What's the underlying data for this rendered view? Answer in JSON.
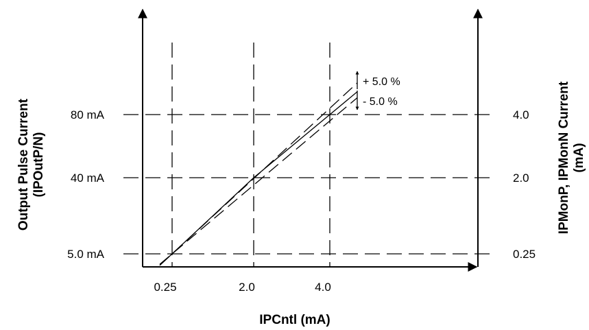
{
  "chart_data": {
    "type": "line",
    "xlabel": "IPCntl (mA)",
    "ylabel_left": [
      "Output Pulse Current",
      "(IPOutP/N)"
    ],
    "ylabel_right": [
      "IPMonP, IPMonN Current",
      "(mA)"
    ],
    "x_ticks": [
      {
        "value": 0.25,
        "label": "0.25"
      },
      {
        "value": 2.0,
        "label": "2.0"
      },
      {
        "value": 4.0,
        "label": "4.0"
      }
    ],
    "y_left_ticks": [
      {
        "value": 5.0,
        "label": "5.0 mA"
      },
      {
        "value": 40,
        "label": "40 mA"
      },
      {
        "value": 80,
        "label": "80 mA"
      }
    ],
    "y_right_ticks": [
      {
        "value": 0.25,
        "label": "0.25"
      },
      {
        "value": 2.0,
        "label": "2.0"
      },
      {
        "value": 4.0,
        "label": "4.0"
      }
    ],
    "series": [
      {
        "style": "solid",
        "x": [
          0.25,
          2.0,
          4.0
        ],
        "y": [
          0.25,
          2.0,
          4.0
        ]
      },
      {
        "style": "dashed",
        "x": [
          0.25,
          4.0
        ],
        "y": [
          0.25,
          4.2
        ]
      },
      {
        "style": "dashed",
        "x": [
          0.25,
          4.0
        ],
        "y": [
          0.25,
          3.8
        ]
      }
    ],
    "annotations": [
      "+ 5.0 %",
      "- 5.0 %"
    ],
    "grid": true
  }
}
